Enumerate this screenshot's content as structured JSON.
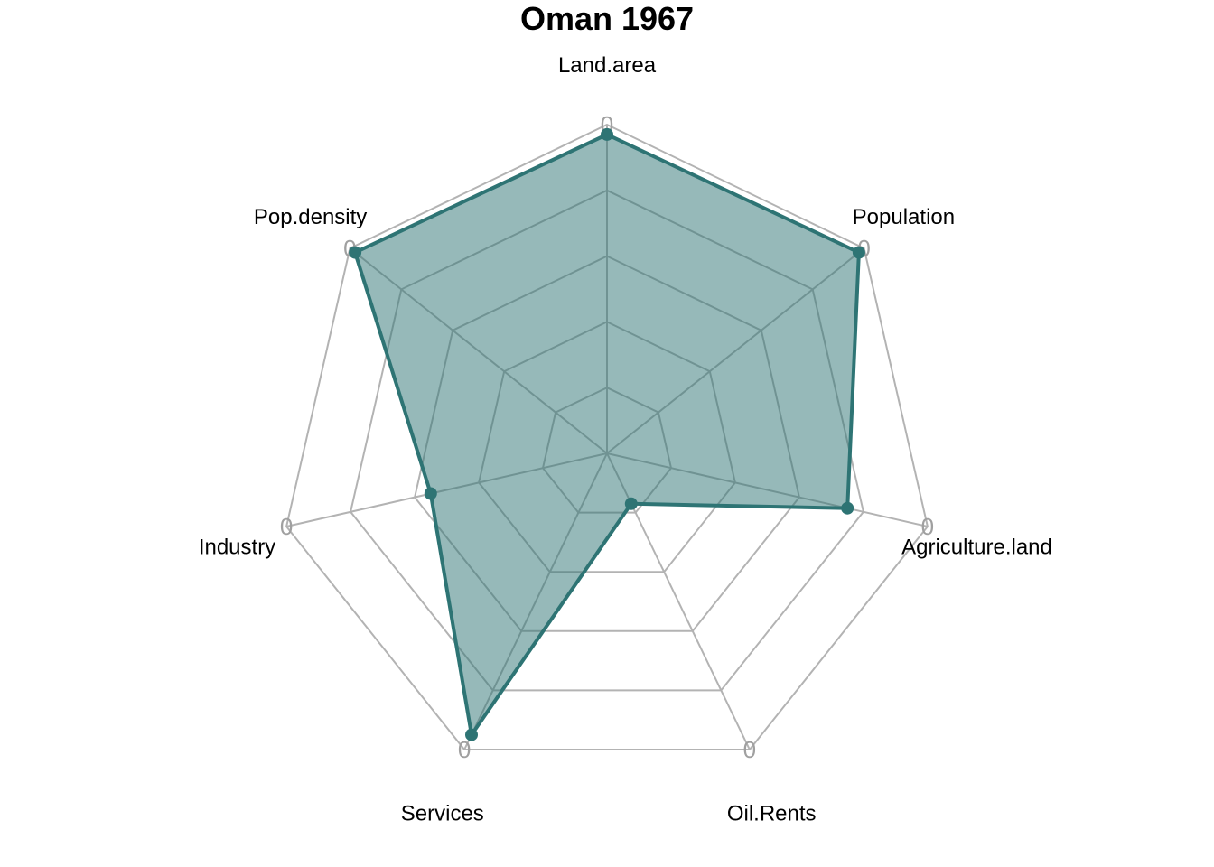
{
  "chart_data": {
    "type": "radar",
    "title": "Oman 1967",
    "axes": [
      "Land.area",
      "Population",
      "Agriculture.land",
      "Oil.Rents",
      "Services",
      "Industry",
      "Pop.density"
    ],
    "series": [
      {
        "values": [
          0.97,
          0.98,
          0.75,
          0.17,
          0.95,
          0.55,
          0.98
        ]
      }
    ],
    "range": [
      0,
      1
    ],
    "grid_levels": 5,
    "axis_tick_label": "0",
    "colors": {
      "series_line": "#2e7474",
      "series_fill": "#2e7474",
      "series_fill_opacity": 0.5,
      "grid": "#b3b3b3",
      "grid_inner": "#6e8c8c"
    }
  }
}
